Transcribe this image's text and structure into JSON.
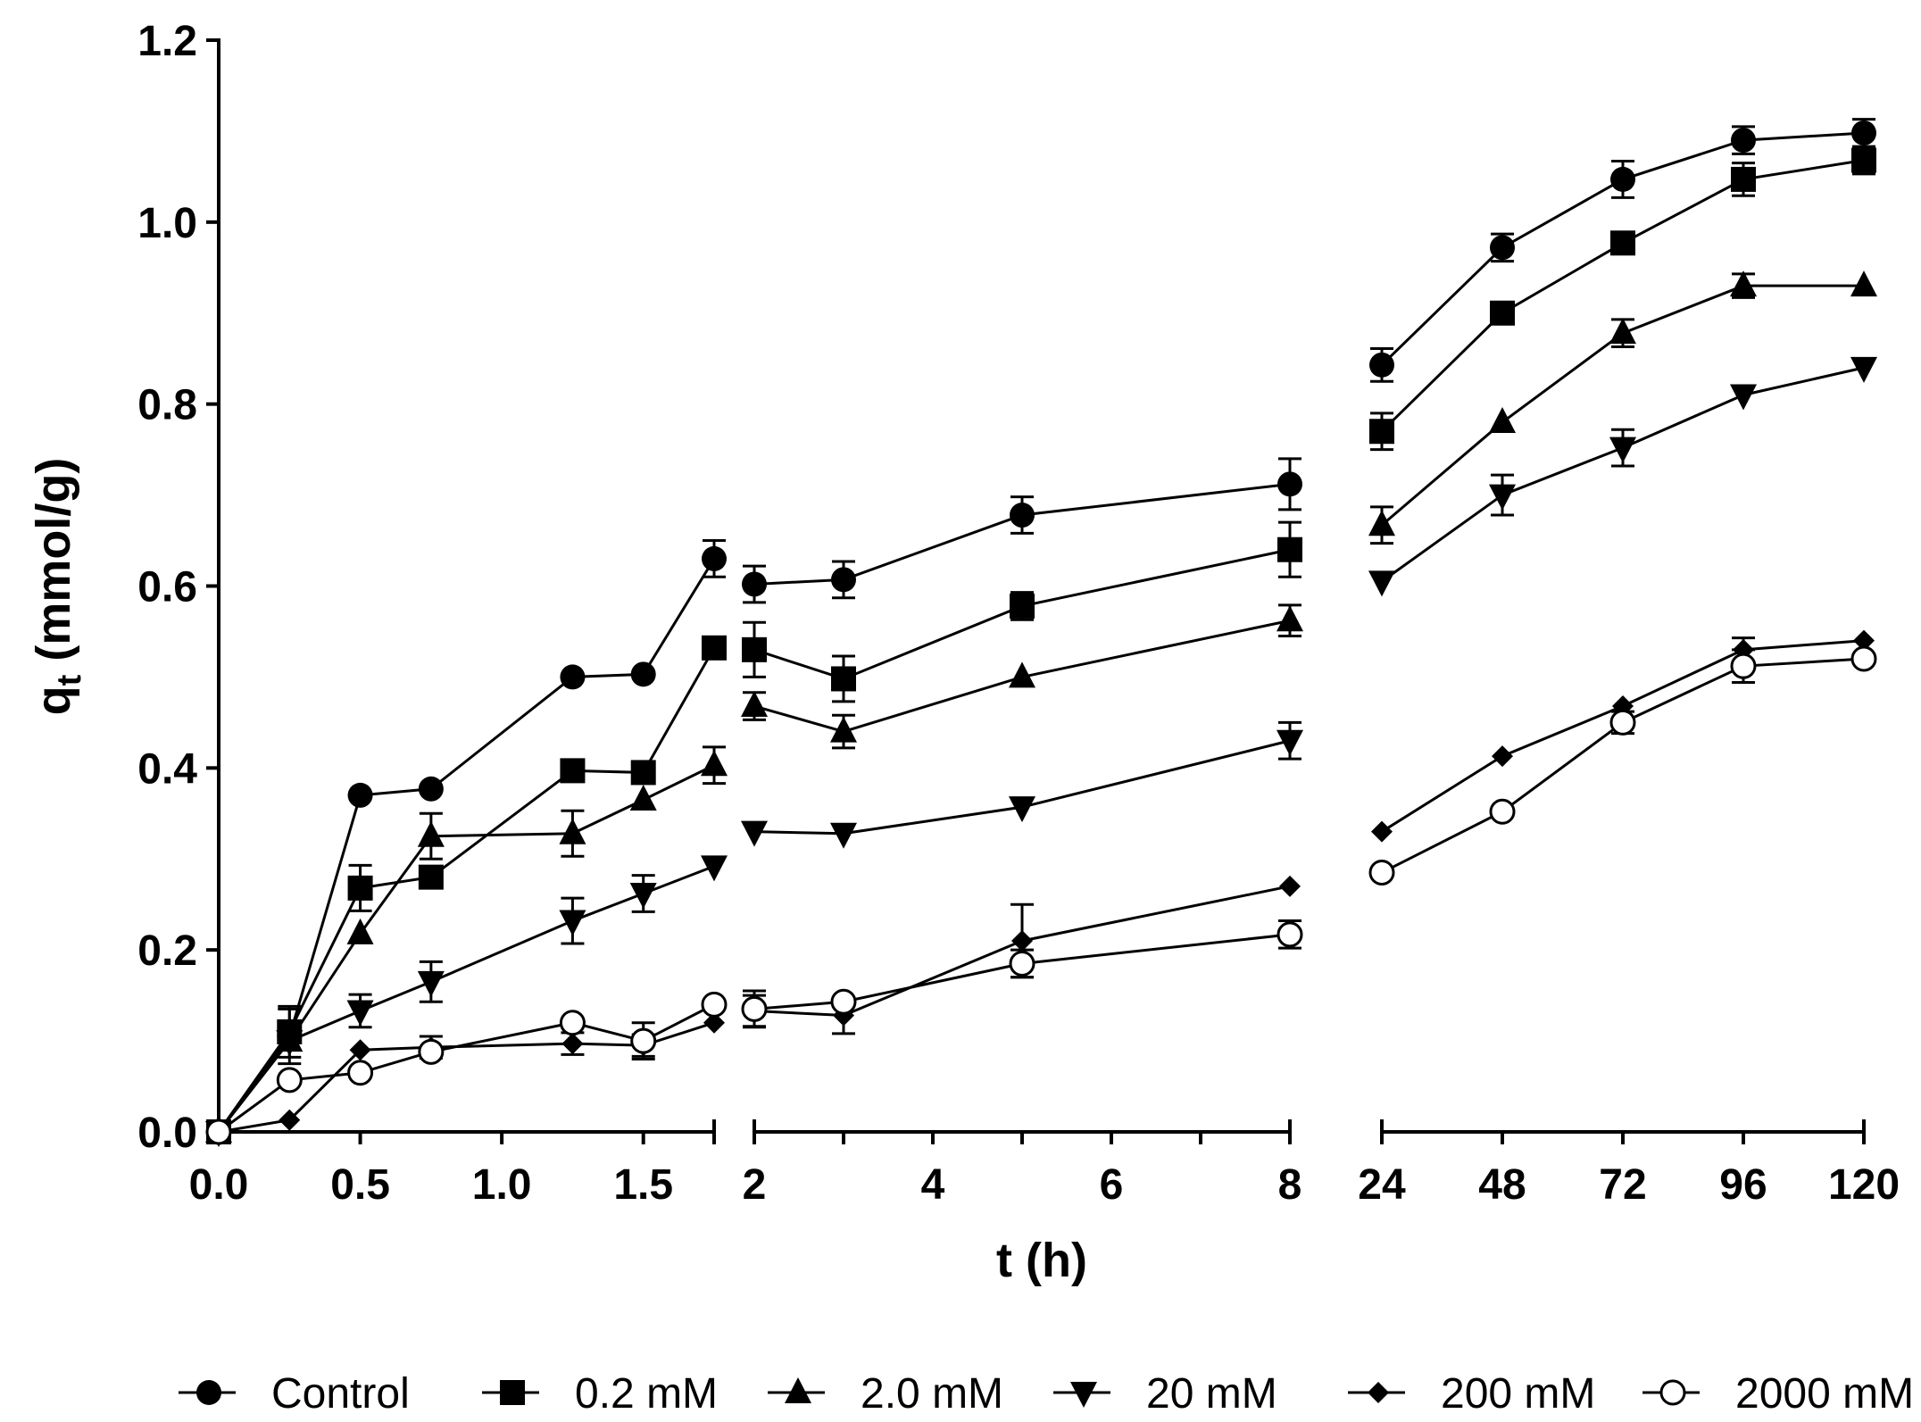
{
  "chart_data": {
    "type": "line",
    "title": "",
    "xlabel": "t (h)",
    "ylabel": {
      "main": "q",
      "sub": "t",
      "unit": "(mmol/g)"
    },
    "ylim": [
      0,
      1.2
    ],
    "y_ticks": [
      0.0,
      0.2,
      0.4,
      0.6,
      0.8,
      1.0,
      1.2
    ],
    "y_tick_labels": [
      "0.0",
      "0.2",
      "0.4",
      "0.6",
      "0.8",
      "1.0",
      "1.2"
    ],
    "legend_position": "bottom",
    "x_segments": [
      {
        "range": [
          0,
          1.75
        ],
        "ticks": [
          0,
          0.5,
          1.0,
          1.5,
          1.75
        ],
        "tick_labels": [
          "0.0",
          "0.5",
          "1.0",
          "1.5",
          ""
        ]
      },
      {
        "range": [
          2,
          8
        ],
        "ticks": [
          2,
          3,
          4,
          5,
          6,
          7,
          8
        ],
        "tick_labels": [
          "2",
          "",
          "4",
          "",
          "6",
          "",
          "8"
        ]
      },
      {
        "range": [
          24,
          120
        ],
        "ticks": [
          24,
          48,
          72,
          96,
          120
        ],
        "tick_labels": [
          "24",
          "48",
          "72",
          "96",
          "120"
        ]
      }
    ],
    "series": [
      {
        "name": "Control",
        "marker": "circle",
        "segments": [
          {
            "x": [
              0,
              0.25,
              0.5,
              0.75,
              1.25,
              1.5,
              1.75
            ],
            "y": [
              0.0,
              0.105,
              0.37,
              0.377,
              0.5,
              0.503,
              0.63
            ],
            "err": [
              0,
              0.03,
              0,
              0,
              0,
              0,
              0.02
            ]
          },
          {
            "x": [
              2,
              3,
              5,
              8
            ],
            "y": [
              0.602,
              0.607,
              0.678,
              0.712
            ],
            "err": [
              0.02,
              0.02,
              0.02,
              0.028
            ]
          },
          {
            "x": [
              24,
              48,
              72,
              96,
              120
            ],
            "y": [
              0.843,
              0.972,
              1.047,
              1.09,
              1.098
            ],
            "err": [
              0.018,
              0.015,
              0.02,
              0.015,
              0.015
            ]
          }
        ]
      },
      {
        "name": "0.2 mM",
        "marker": "square",
        "segments": [
          {
            "x": [
              0,
              0.25,
              0.5,
              0.75,
              1.25,
              1.5,
              1.75
            ],
            "y": [
              0.0,
              0.11,
              0.268,
              0.28,
              0.397,
              0.395,
              0.532
            ],
            "err": [
              0,
              0.028,
              0.025,
              0,
              0,
              0,
              0
            ]
          },
          {
            "x": [
              2,
              3,
              5,
              8
            ],
            "y": [
              0.53,
              0.498,
              0.578,
              0.64
            ],
            "err": [
              0.03,
              0.025,
              0.015,
              0.03
            ]
          },
          {
            "x": [
              24,
              48,
              72,
              96,
              120
            ],
            "y": [
              0.77,
              0.9,
              0.977,
              1.047,
              1.068
            ],
            "err": [
              0.02,
              0,
              0,
              0.018,
              0.015
            ]
          }
        ]
      },
      {
        "name": "2.0 mM",
        "marker": "triangle-up",
        "segments": [
          {
            "x": [
              0,
              0.25,
              0.5,
              0.75,
              1.25,
              1.5,
              1.75
            ],
            "y": [
              0.0,
              0.1,
              0.218,
              0.325,
              0.328,
              0.365,
              0.403
            ],
            "err": [
              0,
              0,
              0,
              0.025,
              0.025,
              0,
              0.02
            ]
          },
          {
            "x": [
              2,
              3,
              5,
              8
            ],
            "y": [
              0.468,
              0.44,
              0.5,
              0.562
            ],
            "err": [
              0.015,
              0.018,
              0,
              0.017
            ]
          },
          {
            "x": [
              24,
              48,
              72,
              96,
              120
            ],
            "y": [
              0.667,
              0.78,
              0.878,
              0.93,
              0.93
            ],
            "err": [
              0.02,
              0,
              0.015,
              0.013,
              0
            ]
          }
        ]
      },
      {
        "name": "20 mM",
        "marker": "triangle-down",
        "segments": [
          {
            "x": [
              0,
              0.25,
              0.5,
              0.75,
              1.25,
              1.5,
              1.75
            ],
            "y": [
              0.0,
              0.1,
              0.133,
              0.165,
              0.232,
              0.262,
              0.292
            ],
            "err": [
              0,
              0,
              0.018,
              0.022,
              0.025,
              0.02,
              0
            ]
          },
          {
            "x": [
              2,
              3,
              5,
              8
            ],
            "y": [
              0.33,
              0.328,
              0.357,
              0.43
            ],
            "err": [
              0,
              0,
              0,
              0.02
            ]
          },
          {
            "x": [
              24,
              48,
              72,
              96,
              120
            ],
            "y": [
              0.605,
              0.7,
              0.752,
              0.81,
              0.84
            ],
            "err": [
              0,
              0.022,
              0.02,
              0,
              0
            ]
          }
        ]
      },
      {
        "name": "200 mM",
        "marker": "diamond",
        "segments": [
          {
            "x": [
              0,
              0.25,
              0.5,
              0.75,
              1.25,
              1.5,
              1.75
            ],
            "y": [
              0.0,
              0.013,
              0.09,
              0.093,
              0.097,
              0.095,
              0.12
            ],
            "err": [
              0,
              0,
              0,
              0.012,
              0.012,
              0.012,
              0
            ]
          },
          {
            "x": [
              2,
              3,
              5,
              8
            ],
            "y": [
              0.133,
              0.128,
              0.21,
              0.27
            ],
            "err": [
              0.017,
              0.02,
              0.04,
              0
            ]
          },
          {
            "x": [
              24,
              48,
              72,
              96,
              120
            ],
            "y": [
              0.33,
              0.413,
              0.468,
              0.53,
              0.54
            ],
            "err": [
              0,
              0,
              0,
              0.013,
              0
            ]
          }
        ]
      },
      {
        "name": "2000 mM",
        "marker": "circle-open",
        "segments": [
          {
            "x": [
              0,
              0.25,
              0.5,
              0.75,
              1.25,
              1.5,
              1.75
            ],
            "y": [
              0.0,
              0.057,
              0.065,
              0.088,
              0.12,
              0.1,
              0.14
            ],
            "err": [
              0,
              0,
              0,
              0,
              0,
              0.02,
              0
            ]
          },
          {
            "x": [
              2,
              3,
              5,
              8
            ],
            "y": [
              0.135,
              0.143,
              0.185,
              0.217
            ],
            "err": [
              0.02,
              0,
              0.015,
              0.015
            ]
          },
          {
            "x": [
              24,
              48,
              72,
              96,
              120
            ],
            "y": [
              0.285,
              0.352,
              0.45,
              0.512,
              0.52
            ],
            "err": [
              0,
              0,
              0.012,
              0.018,
              0
            ]
          }
        ]
      }
    ]
  }
}
